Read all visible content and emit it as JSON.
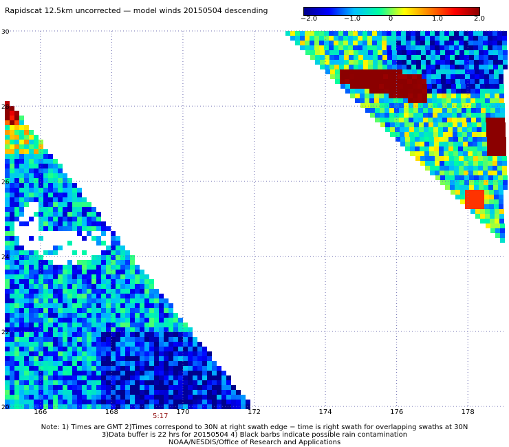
{
  "header": {
    "title": "Rapidscat 12.5km uncorrected — model winds 20150504 descending"
  },
  "colorbar": {
    "tick_labels": [
      "−2.0",
      "−1.0",
      "0",
      "1.0",
      "2.0"
    ],
    "range": [
      -2.0,
      2.0
    ],
    "colors": [
      "#00008b",
      "#0000ff",
      "#00c0ff",
      "#00ffa0",
      "#ffff00",
      "#ff8000",
      "#ff0000",
      "#8b0000"
    ]
  },
  "chart_data": {
    "type": "heatmap",
    "xlim": [
      165,
      179
    ],
    "ylim": [
      20,
      30
    ],
    "x_tick_labels": [
      "166",
      "168",
      "170",
      "172",
      "174",
      "176",
      "178"
    ],
    "y_tick_labels": [
      "30",
      "28",
      "26",
      "24",
      "22",
      "20"
    ],
    "grid": true,
    "colorscale_range": [
      -2.0,
      2.0
    ],
    "swaths": [
      {
        "description": "left swath",
        "time_label": "5:17"
      },
      {
        "description": "right swath"
      }
    ]
  },
  "footer": {
    "time_label": "5:17",
    "note_line1": "Note: 1) Times are GMT 2)Times correspond to 30N at right swath edge − time is right swath for overlapping swaths at 30N",
    "note_line2": "3)Data buffer is 22 hrs for 20150504 4) Black barbs indicate possible rain contamination",
    "note_line3": "NOAA/NESDIS/Office of Research and Applications"
  }
}
